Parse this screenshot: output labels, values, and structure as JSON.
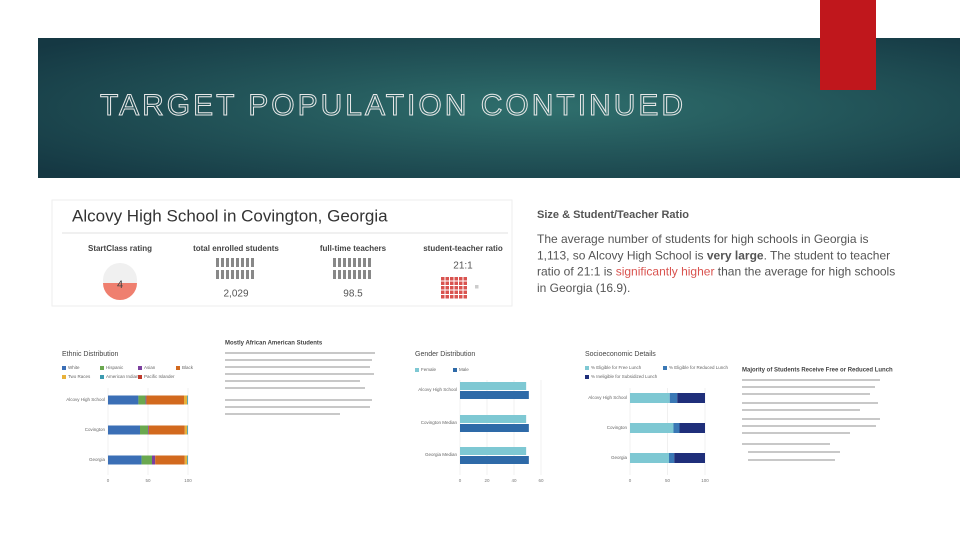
{
  "header": {
    "title": "TARGET POPULATION CONTINUED"
  },
  "profile": {
    "title": "Alcovy High School in Covington, Georgia",
    "stats": [
      {
        "label": "StartClass rating",
        "value": "4"
      },
      {
        "label": "total enrolled students",
        "value": "2,029"
      },
      {
        "label": "full-time teachers",
        "value": "98.5"
      },
      {
        "label": "student-teacher ratio",
        "value": "21:1"
      }
    ]
  },
  "ratio_panel": {
    "heading": "Size & Student/Teacher Ratio",
    "lines": [
      [
        "The average number of students for high schools in Georgia is"
      ],
      [
        "1,113, so Alcovy High School is ",
        "very large",
        ". The student to teacher"
      ],
      [
        "ratio of 21:1 is ",
        "significantly higher",
        " than the average for high schools"
      ],
      [
        "in Georgia (16.9)."
      ]
    ]
  },
  "notes": {
    "ethnic_heading": "Mostly African American Students",
    "lunch_heading": "Majority of Students Receive Free or Reduced Lunch"
  },
  "chart_data": [
    {
      "type": "stacked_bar",
      "title": "Ethnic Distribution",
      "categories": [
        "Alcovy High School",
        "Covington",
        "Georgia"
      ],
      "series": [
        {
          "name": "White",
          "color": "#3b6fb6",
          "values": [
            38,
            40,
            42
          ]
        },
        {
          "name": "Hispanic",
          "color": "#6aa84f",
          "values": [
            9,
            10,
            13
          ]
        },
        {
          "name": "Asian",
          "color": "#7b3f9e",
          "values": [
            1,
            1,
            4
          ]
        },
        {
          "name": "Black",
          "color": "#d2691e",
          "values": [
            47,
            45,
            37
          ]
        },
        {
          "name": "Two Races",
          "color": "#e8b13a",
          "values": [
            4,
            3,
            3
          ]
        },
        {
          "name": "American Indian",
          "color": "#3d9bb0",
          "values": [
            1,
            1,
            1
          ]
        },
        {
          "name": "Pacific Islander",
          "color": "#c0392b",
          "values": [
            0,
            0,
            0
          ]
        }
      ],
      "xlim": [
        0,
        100
      ],
      "xticks": [
        0,
        50,
        100
      ]
    },
    {
      "type": "grouped_bar",
      "title": "Gender Distribution",
      "categories": [
        "Alcovy High School",
        "Covington Median",
        "Georgia Median"
      ],
      "series": [
        {
          "name": "Female",
          "color": "#7ec8d3",
          "values": [
            49,
            49,
            49
          ]
        },
        {
          "name": "Male",
          "color": "#2e6aa8",
          "values": [
            51,
            51,
            51
          ]
        }
      ],
      "xlim": [
        0,
        60
      ],
      "xticks": [
        0,
        20,
        40,
        60
      ]
    },
    {
      "type": "stacked_bar",
      "title": "Socioeconomic Details",
      "categories": [
        "Alcovy High School",
        "Covington",
        "Georgia"
      ],
      "series": [
        {
          "name": "% Eligible for Free Lunch",
          "color": "#7ec8d3",
          "values": [
            53,
            58,
            52
          ]
        },
        {
          "name": "% Eligible for Reduced Lunch",
          "color": "#3a78b5",
          "values": [
            10,
            8,
            7
          ]
        },
        {
          "name": "% Ineligible for Subsidized Lunch",
          "color": "#1f2f7a",
          "values": [
            37,
            34,
            41
          ]
        }
      ],
      "xlim": [
        0,
        100
      ],
      "xticks": [
        0,
        50,
        100
      ]
    }
  ]
}
